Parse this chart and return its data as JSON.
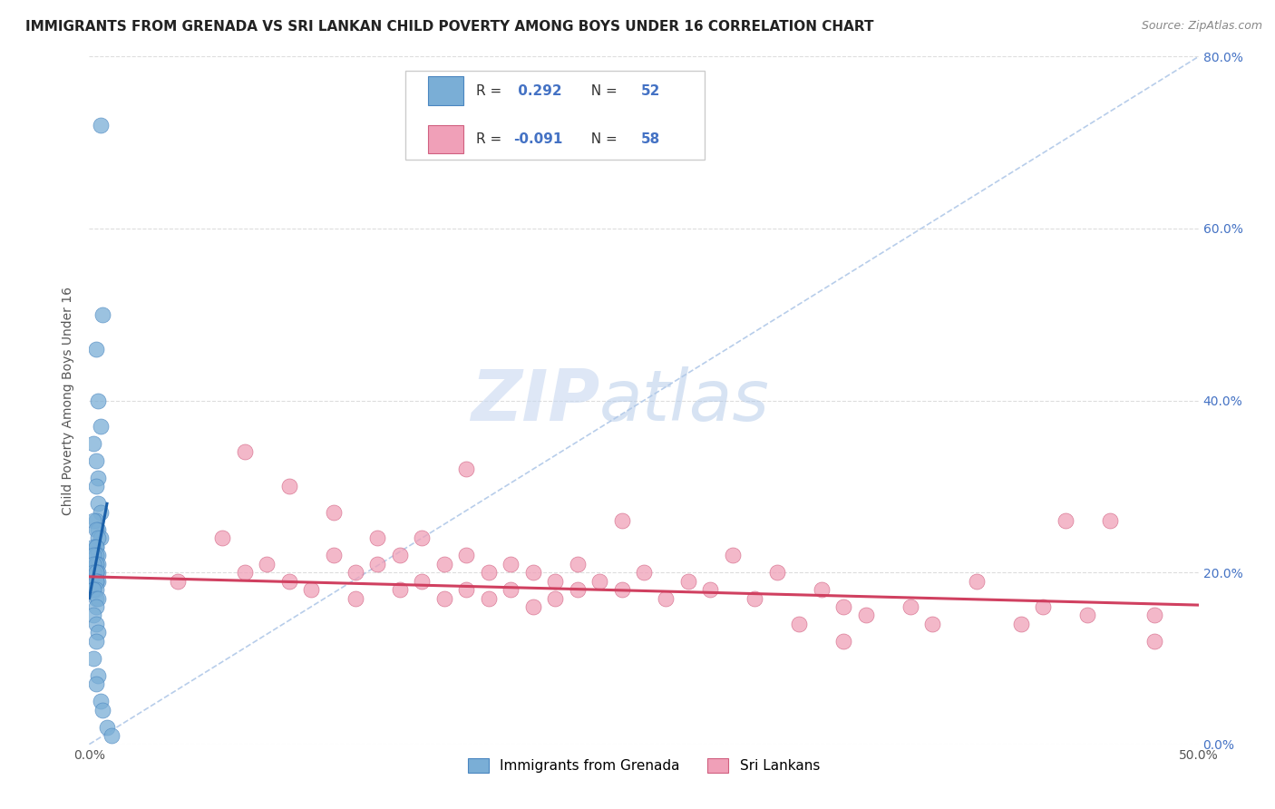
{
  "title": "IMMIGRANTS FROM GRENADA VS SRI LANKAN CHILD POVERTY AMONG BOYS UNDER 16 CORRELATION CHART",
  "source": "Source: ZipAtlas.com",
  "ylabel": "Child Poverty Among Boys Under 16",
  "xlim": [
    0.0,
    0.5
  ],
  "ylim": [
    0.0,
    0.8
  ],
  "xticks": [
    0.0,
    0.1,
    0.2,
    0.3,
    0.4,
    0.5
  ],
  "xticklabels": [
    "0.0%",
    "",
    "",
    "",
    "",
    "50.0%"
  ],
  "yticks": [
    0.0,
    0.2,
    0.4,
    0.6,
    0.8
  ],
  "yticklabels_right": [
    "0.0%",
    "20.0%",
    "40.0%",
    "60.0%",
    "80.0%"
  ],
  "blue_scatter_x": [
    0.005,
    0.006,
    0.003,
    0.004,
    0.005,
    0.002,
    0.003,
    0.004,
    0.003,
    0.004,
    0.005,
    0.003,
    0.002,
    0.004,
    0.003,
    0.005,
    0.004,
    0.003,
    0.002,
    0.003,
    0.004,
    0.003,
    0.002,
    0.003,
    0.004,
    0.003,
    0.002,
    0.003,
    0.004,
    0.003,
    0.002,
    0.003,
    0.004,
    0.003,
    0.003,
    0.002,
    0.003,
    0.002,
    0.003,
    0.004,
    0.003,
    0.002,
    0.003,
    0.004,
    0.003,
    0.002,
    0.004,
    0.003,
    0.005,
    0.006,
    0.008,
    0.01
  ],
  "blue_scatter_y": [
    0.72,
    0.5,
    0.46,
    0.4,
    0.37,
    0.35,
    0.33,
    0.31,
    0.3,
    0.28,
    0.27,
    0.26,
    0.26,
    0.25,
    0.25,
    0.24,
    0.24,
    0.23,
    0.23,
    0.23,
    0.22,
    0.22,
    0.22,
    0.21,
    0.21,
    0.21,
    0.21,
    0.2,
    0.2,
    0.2,
    0.2,
    0.2,
    0.19,
    0.19,
    0.19,
    0.18,
    0.18,
    0.18,
    0.17,
    0.17,
    0.16,
    0.15,
    0.14,
    0.13,
    0.12,
    0.1,
    0.08,
    0.07,
    0.05,
    0.04,
    0.02,
    0.01
  ],
  "pink_scatter_x": [
    0.04,
    0.06,
    0.07,
    0.08,
    0.09,
    0.1,
    0.11,
    0.12,
    0.12,
    0.13,
    0.14,
    0.14,
    0.15,
    0.15,
    0.16,
    0.16,
    0.17,
    0.17,
    0.18,
    0.18,
    0.19,
    0.19,
    0.2,
    0.2,
    0.21,
    0.21,
    0.22,
    0.22,
    0.23,
    0.24,
    0.25,
    0.26,
    0.27,
    0.28,
    0.3,
    0.31,
    0.32,
    0.33,
    0.34,
    0.35,
    0.37,
    0.38,
    0.4,
    0.42,
    0.43,
    0.44,
    0.45,
    0.46,
    0.48,
    0.07,
    0.09,
    0.11,
    0.13,
    0.17,
    0.24,
    0.29,
    0.34,
    0.48
  ],
  "pink_scatter_y": [
    0.19,
    0.24,
    0.2,
    0.21,
    0.19,
    0.18,
    0.22,
    0.2,
    0.17,
    0.21,
    0.18,
    0.22,
    0.19,
    0.24,
    0.17,
    0.21,
    0.18,
    0.22,
    0.2,
    0.17,
    0.21,
    0.18,
    0.2,
    0.16,
    0.19,
    0.17,
    0.21,
    0.18,
    0.19,
    0.18,
    0.2,
    0.17,
    0.19,
    0.18,
    0.17,
    0.2,
    0.14,
    0.18,
    0.16,
    0.15,
    0.16,
    0.14,
    0.19,
    0.14,
    0.16,
    0.26,
    0.15,
    0.26,
    0.15,
    0.34,
    0.3,
    0.27,
    0.24,
    0.32,
    0.26,
    0.22,
    0.12,
    0.12
  ],
  "blue_line_x": [
    0.0,
    0.008
  ],
  "blue_line_y": [
    0.17,
    0.28
  ],
  "pink_line_x": [
    0.0,
    0.5
  ],
  "pink_line_y": [
    0.195,
    0.162
  ],
  "diag_line_x": [
    0.0,
    0.5
  ],
  "diag_line_y": [
    0.0,
    0.8
  ],
  "watermark_zip": "ZIP",
  "watermark_atlas": "atlas",
  "background_color": "#ffffff",
  "grid_color": "#dddddd",
  "title_fontsize": 11,
  "axis_label_fontsize": 10,
  "tick_fontsize": 10,
  "legend_r1": "R =  0.292",
  "legend_n1": "N = 52",
  "legend_r2": "R = -0.091",
  "legend_n2": "N = 58",
  "blue_color": "#7aaed6",
  "blue_edge": "#4a86c0",
  "pink_color": "#f0a0b8",
  "pink_edge": "#d06080",
  "blue_line_color": "#1a5fa8",
  "pink_line_color": "#d04060",
  "diag_color": "#b0c8e8"
}
